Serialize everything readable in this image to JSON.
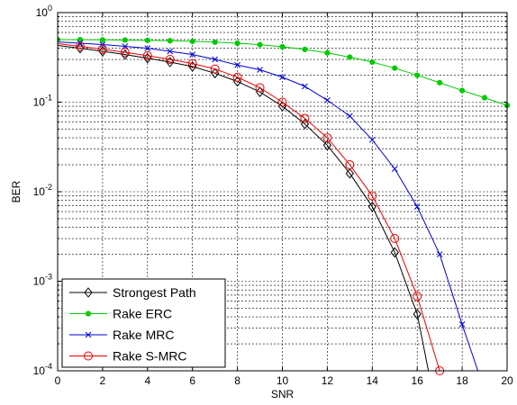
{
  "chart_data": {
    "type": "line",
    "title": "",
    "xlabel": "SNR",
    "ylabel": "BER",
    "xlim": [
      0,
      20
    ],
    "ylim": [
      0.0001,
      1
    ],
    "yscale": "log",
    "grid": true,
    "legend_position": "bottom-left",
    "x_ticks": [
      "0",
      "2",
      "4",
      "6",
      "8",
      "10",
      "12",
      "14",
      "16",
      "18",
      "20"
    ],
    "y_ticks": [
      {
        "base": "10",
        "exp": "0"
      },
      {
        "base": "10",
        "exp": "-1"
      },
      {
        "base": "10",
        "exp": "-2"
      },
      {
        "base": "10",
        "exp": "-3"
      },
      {
        "base": "10",
        "exp": "-4"
      }
    ],
    "series": [
      {
        "name": "Strongest Path",
        "color": "#000000",
        "marker": "diamond",
        "x": [
          0,
          1,
          2,
          3,
          4,
          5,
          6,
          7,
          8,
          9,
          10,
          11,
          12,
          13,
          14,
          15,
          16,
          16.5
        ],
        "y": [
          0.43,
          0.4,
          0.37,
          0.34,
          0.31,
          0.28,
          0.25,
          0.21,
          0.17,
          0.13,
          0.09,
          0.057,
          0.033,
          0.016,
          0.0068,
          0.0021,
          0.00043,
          0.0001
        ]
      },
      {
        "name": "Rake ERC",
        "color": "#00cc00",
        "marker": "dot",
        "x": [
          0,
          1,
          2,
          3,
          4,
          5,
          6,
          7,
          8,
          9,
          10,
          11,
          12,
          13,
          14,
          15,
          16,
          17,
          18,
          19,
          20
        ],
        "y": [
          0.5,
          0.498,
          0.496,
          0.494,
          0.49,
          0.485,
          0.478,
          0.468,
          0.455,
          0.438,
          0.415,
          0.388,
          0.355,
          0.318,
          0.28,
          0.24,
          0.2,
          0.165,
          0.135,
          0.112,
          0.092
        ]
      },
      {
        "name": "Rake MRC",
        "color": "#0000dd",
        "marker": "x",
        "x": [
          0,
          1,
          2,
          3,
          4,
          5,
          6,
          7,
          8,
          9,
          10,
          11,
          12,
          13,
          14,
          15,
          16,
          17,
          18,
          18.7
        ],
        "y": [
          0.47,
          0.455,
          0.44,
          0.42,
          0.4,
          0.37,
          0.34,
          0.3,
          0.26,
          0.23,
          0.19,
          0.15,
          0.105,
          0.07,
          0.038,
          0.018,
          0.0068,
          0.002,
          0.00033,
          0.0001
        ]
      },
      {
        "name": "Rake S-MRC",
        "color": "#ee0000",
        "marker": "circle",
        "x": [
          0,
          1,
          2,
          3,
          4,
          5,
          6,
          7,
          8,
          9,
          10,
          11,
          12,
          13,
          14,
          15,
          16,
          17
        ],
        "y": [
          0.45,
          0.42,
          0.39,
          0.36,
          0.33,
          0.3,
          0.27,
          0.235,
          0.19,
          0.145,
          0.1,
          0.066,
          0.04,
          0.02,
          0.009,
          0.003,
          0.00068,
          0.0001
        ]
      }
    ]
  }
}
